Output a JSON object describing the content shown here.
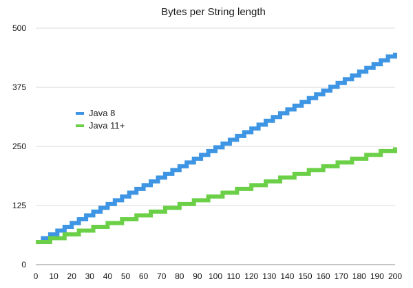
{
  "chart_data": {
    "type": "line",
    "title": "Bytes per String length",
    "xlabel": "",
    "ylabel": "",
    "xlim": [
      0,
      200
    ],
    "ylim": [
      0,
      500
    ],
    "x_ticks": [
      "0",
      "10",
      "20",
      "30",
      "40",
      "50",
      "60",
      "70",
      "80",
      "90",
      "100",
      "110",
      "120",
      "130",
      "140",
      "150",
      "160",
      "170",
      "180",
      "190",
      "200"
    ],
    "y_ticks": [
      "0",
      "125",
      "250",
      "375",
      "500"
    ],
    "grid": "horizontal",
    "legend_position": "middle-left",
    "step_shape": "staircase",
    "series": [
      {
        "name": "Java 8",
        "color": "#3d95e3",
        "x": [
          0,
          4,
          8,
          12,
          16,
          20,
          24,
          28,
          32,
          36,
          40,
          44,
          48,
          52,
          56,
          60,
          64,
          68,
          72,
          76,
          80,
          84,
          88,
          92,
          96,
          100,
          104,
          108,
          112,
          116,
          120,
          124,
          128,
          132,
          136,
          140,
          144,
          148,
          152,
          156,
          160,
          164,
          168,
          172,
          176,
          180,
          184,
          188,
          192,
          196,
          200
        ],
        "values": [
          48,
          56,
          64,
          72,
          80,
          88,
          96,
          104,
          112,
          120,
          128,
          136,
          144,
          152,
          160,
          168,
          176,
          184,
          192,
          200,
          208,
          216,
          224,
          232,
          240,
          248,
          256,
          264,
          272,
          280,
          288,
          296,
          304,
          312,
          320,
          328,
          336,
          344,
          352,
          360,
          368,
          376,
          384,
          392,
          400,
          408,
          416,
          424,
          432,
          440,
          448
        ]
      },
      {
        "name": "Java 11+",
        "color": "#6bd047",
        "x": [
          0,
          8,
          16,
          24,
          32,
          40,
          48,
          56,
          64,
          72,
          80,
          88,
          96,
          104,
          112,
          120,
          128,
          136,
          144,
          152,
          160,
          168,
          176,
          184,
          192,
          200
        ],
        "values": [
          48,
          56,
          64,
          72,
          80,
          88,
          96,
          104,
          112,
          120,
          128,
          136,
          144,
          152,
          160,
          168,
          176,
          184,
          192,
          200,
          208,
          216,
          224,
          232,
          240,
          248
        ]
      }
    ]
  }
}
